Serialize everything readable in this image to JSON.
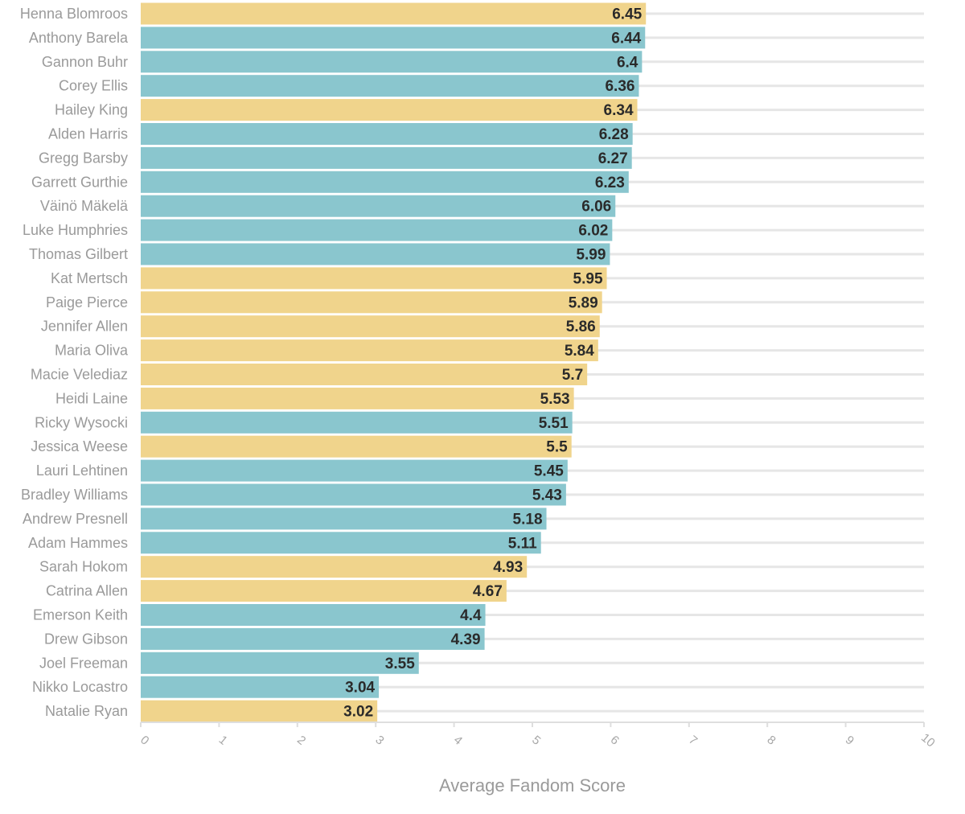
{
  "colors": {
    "teal": "#8ac6ce",
    "yellow": "#f0d48c",
    "grid": "#e6e6e6"
  },
  "chart_data": {
    "type": "bar",
    "orientation": "horizontal",
    "title": "",
    "xlabel": "Average Fandom Score",
    "ylabel": "",
    "xlim": [
      0,
      10
    ],
    "xticks": [
      "0",
      "1",
      "2",
      "3",
      "4",
      "5",
      "6",
      "7",
      "8",
      "9",
      "10"
    ],
    "grid": true,
    "bars": [
      {
        "name": "Henna Blomroos",
        "value": 6.45,
        "label": "6.45",
        "group": "yellow"
      },
      {
        "name": "Anthony Barela",
        "value": 6.44,
        "label": "6.44",
        "group": "teal"
      },
      {
        "name": "Gannon Buhr",
        "value": 6.4,
        "label": "6.4",
        "group": "teal"
      },
      {
        "name": "Corey Ellis",
        "value": 6.36,
        "label": "6.36",
        "group": "teal"
      },
      {
        "name": "Hailey King",
        "value": 6.34,
        "label": "6.34",
        "group": "yellow"
      },
      {
        "name": "Alden Harris",
        "value": 6.28,
        "label": "6.28",
        "group": "teal"
      },
      {
        "name": "Gregg Barsby",
        "value": 6.27,
        "label": "6.27",
        "group": "teal"
      },
      {
        "name": "Garrett Gurthie",
        "value": 6.23,
        "label": "6.23",
        "group": "teal"
      },
      {
        "name": "Väinö Mäkelä",
        "value": 6.06,
        "label": "6.06",
        "group": "teal"
      },
      {
        "name": "Luke Humphries",
        "value": 6.02,
        "label": "6.02",
        "group": "teal"
      },
      {
        "name": "Thomas Gilbert",
        "value": 5.99,
        "label": "5.99",
        "group": "teal"
      },
      {
        "name": "Kat Mertsch",
        "value": 5.95,
        "label": "5.95",
        "group": "yellow"
      },
      {
        "name": "Paige Pierce",
        "value": 5.89,
        "label": "5.89",
        "group": "yellow"
      },
      {
        "name": "Jennifer Allen",
        "value": 5.86,
        "label": "5.86",
        "group": "yellow"
      },
      {
        "name": "Maria Oliva",
        "value": 5.84,
        "label": "5.84",
        "group": "yellow"
      },
      {
        "name": "Macie Velediaz",
        "value": 5.7,
        "label": "5.7",
        "group": "yellow"
      },
      {
        "name": "Heidi Laine",
        "value": 5.53,
        "label": "5.53",
        "group": "yellow"
      },
      {
        "name": "Ricky Wysocki",
        "value": 5.51,
        "label": "5.51",
        "group": "teal"
      },
      {
        "name": "Jessica Weese",
        "value": 5.5,
        "label": "5.5",
        "group": "yellow"
      },
      {
        "name": "Lauri Lehtinen",
        "value": 5.45,
        "label": "5.45",
        "group": "teal"
      },
      {
        "name": "Bradley Williams",
        "value": 5.43,
        "label": "5.43",
        "group": "teal"
      },
      {
        "name": "Andrew Presnell",
        "value": 5.18,
        "label": "5.18",
        "group": "teal"
      },
      {
        "name": "Adam Hammes",
        "value": 5.11,
        "label": "5.11",
        "group": "teal"
      },
      {
        "name": "Sarah Hokom",
        "value": 4.93,
        "label": "4.93",
        "group": "yellow"
      },
      {
        "name": "Catrina Allen",
        "value": 4.67,
        "label": "4.67",
        "group": "yellow"
      },
      {
        "name": "Emerson Keith",
        "value": 4.4,
        "label": "4.4",
        "group": "teal"
      },
      {
        "name": "Drew Gibson",
        "value": 4.39,
        "label": "4.39",
        "group": "teal"
      },
      {
        "name": "Joel Freeman",
        "value": 3.55,
        "label": "3.55",
        "group": "teal"
      },
      {
        "name": "Nikko Locastro",
        "value": 3.04,
        "label": "3.04",
        "group": "teal"
      },
      {
        "name": "Natalie Ryan",
        "value": 3.02,
        "label": "3.02",
        "group": "yellow"
      }
    ]
  }
}
